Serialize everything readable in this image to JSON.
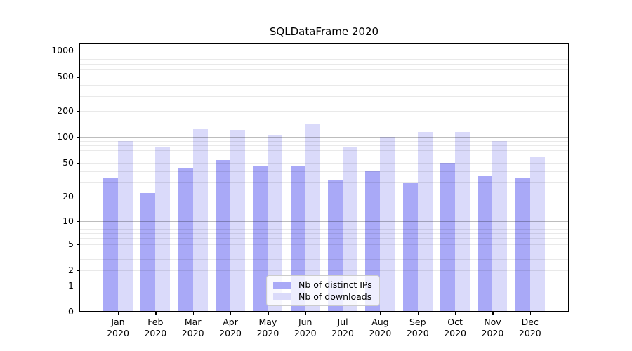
{
  "title": "SQLDataFrame 2020",
  "legend": {
    "items": [
      {
        "label": "Nb of distinct IPs",
        "color": "#a9a9f7"
      },
      {
        "label": "Nb of downloads",
        "color": "#dadafa"
      }
    ]
  },
  "y_axis": {
    "tick_values": [
      0,
      1,
      2,
      5,
      10,
      20,
      50,
      100,
      200,
      500,
      1000
    ]
  },
  "x_axis": {
    "months": [
      "Jan",
      "Feb",
      "Mar",
      "Apr",
      "May",
      "Jun",
      "Jul",
      "Aug",
      "Sep",
      "Oct",
      "Nov",
      "Dec"
    ],
    "year": "2020"
  },
  "chart_data": {
    "type": "bar",
    "title": "SQLDataFrame 2020",
    "categories": [
      "Jan 2020",
      "Feb 2020",
      "Mar 2020",
      "Apr 2020",
      "May 2020",
      "Jun 2020",
      "Jul 2020",
      "Aug 2020",
      "Sep 2020",
      "Oct 2020",
      "Nov 2020",
      "Dec 2020"
    ],
    "series": [
      {
        "name": "Nb of distinct IPs",
        "color": "#a9a9f7",
        "values": [
          34,
          22,
          43,
          54,
          47,
          46,
          31,
          40,
          29,
          50,
          36,
          34
        ]
      },
      {
        "name": "Nb of downloads",
        "color": "#dadafa",
        "values": [
          90,
          76,
          123,
          122,
          105,
          145,
          78,
          101,
          114,
          116,
          90,
          58
        ]
      }
    ],
    "yscale": "log1p",
    "yticks": [
      0,
      1,
      2,
      5,
      10,
      20,
      50,
      100,
      200,
      500,
      1000
    ],
    "grid_major_at": [
      1,
      10,
      100,
      1000
    ],
    "grid_minor_bases": [
      2,
      3,
      4,
      5,
      6,
      7,
      8,
      9
    ],
    "ylim": [
      0,
      1260
    ],
    "xlabel": "",
    "ylabel": "",
    "legend_position": "lower center",
    "grid": true
  }
}
